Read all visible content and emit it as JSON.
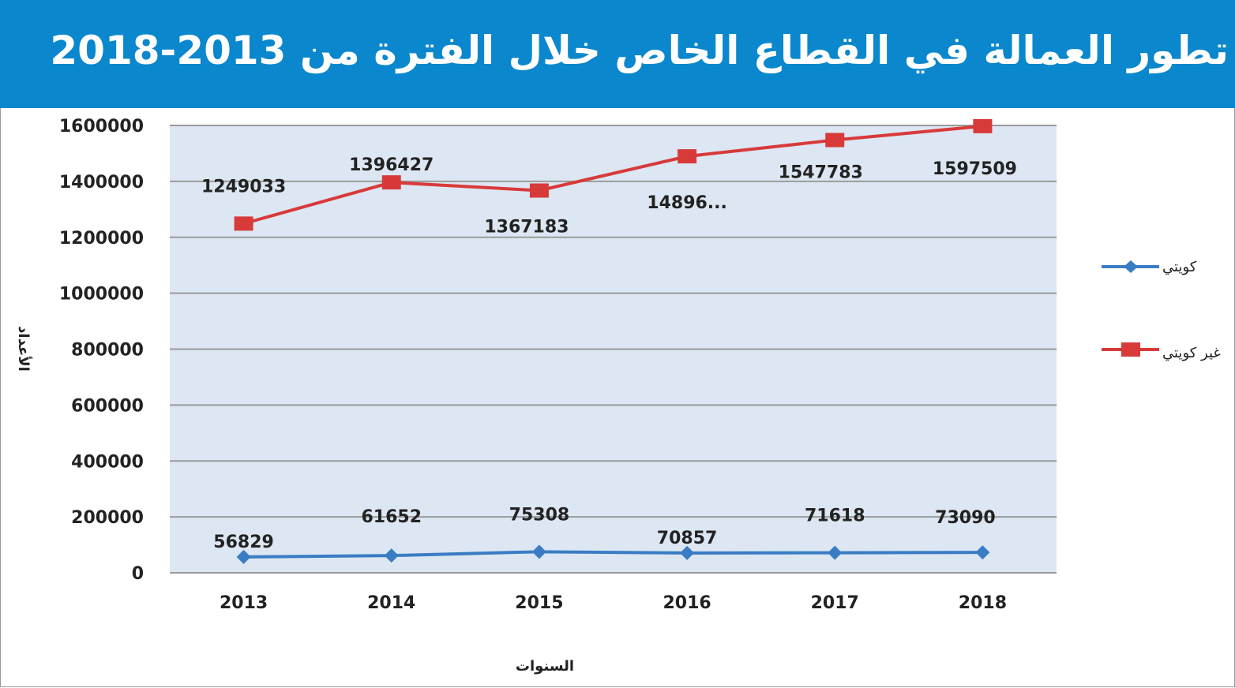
{
  "chart_data": {
    "type": "line",
    "title": "تطور العمالة في القطاع الخاص خلال الفترة من 2013-2018",
    "xlabel": "السنوات",
    "ylabel": "الأعداد",
    "categories": [
      "2013",
      "2014",
      "2015",
      "2016",
      "2017",
      "2018"
    ],
    "ylim": [
      0,
      1600000
    ],
    "yticks": [
      "0",
      "200000",
      "400000",
      "600000",
      "800000",
      "1000000",
      "1200000",
      "1400000",
      "1600000"
    ],
    "grid": true,
    "legend_position": "right",
    "series": [
      {
        "name": "كويتي",
        "color": "#3a7cc4",
        "marker": "diamond",
        "values": [
          56829,
          61652,
          75308,
          70857,
          71618,
          73090
        ],
        "labels": [
          "56829",
          "61652",
          "75308",
          "70857",
          "71618",
          "73090"
        ]
      },
      {
        "name": "غير كويتي",
        "color": "#d83a3a",
        "marker": "square",
        "values": [
          1249033,
          1396427,
          1367183,
          1489600,
          1547783,
          1597509
        ],
        "labels": [
          "1249033",
          "1396427",
          "1367183",
          "14896...",
          "1547783",
          "1597509"
        ]
      }
    ]
  }
}
